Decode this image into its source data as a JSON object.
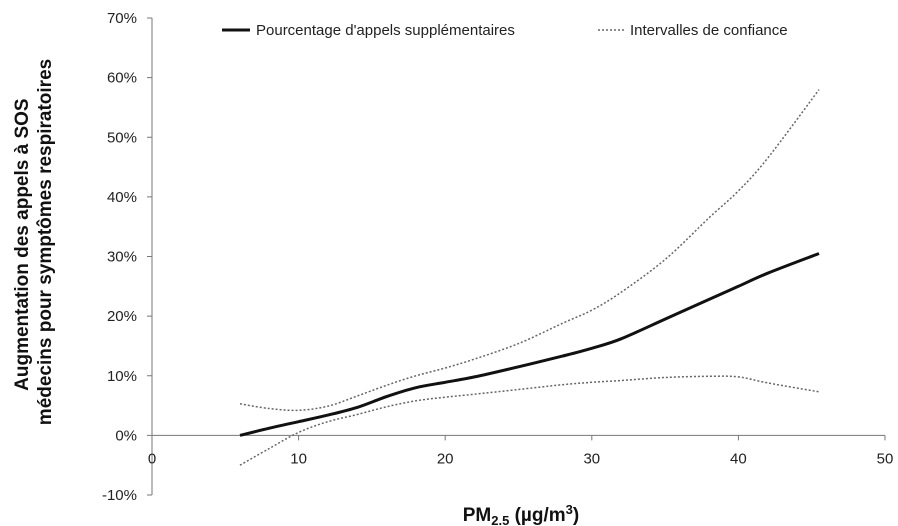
{
  "chart_data": {
    "type": "line",
    "title": "",
    "xlabel": "PM",
    "xlabel_sub": "2.5",
    "xlabel_unit_open": " (µg/m",
    "xlabel_unit_sup": "3",
    "xlabel_unit_close": ")",
    "ylabel_line1": "Augmentation des appels à SOS",
    "ylabel_line2": "médecins pour symptômes respiratoires",
    "xlim": [
      0,
      50
    ],
    "ylim": [
      -10,
      70
    ],
    "x_ticks": [
      0,
      10,
      20,
      30,
      40,
      50
    ],
    "y_ticks": [
      -10,
      0,
      10,
      20,
      30,
      40,
      50,
      60,
      70
    ],
    "x_tick_labels": [
      "0",
      "10",
      "20",
      "30",
      "40",
      "50"
    ],
    "y_tick_labels": [
      "-10%",
      "0%",
      "10%",
      "20%",
      "30%",
      "40%",
      "50%",
      "60%",
      "70%"
    ],
    "grid": false,
    "legend_position": "top",
    "series": [
      {
        "name": "Pourcentage d'appels supplémentaires",
        "style": "solid",
        "color": "#111111",
        "x": [
          6,
          8,
          10,
          12,
          14,
          16,
          18,
          20,
          22,
          25,
          28,
          30,
          32,
          35,
          38,
          40,
          42,
          45.5
        ],
        "y": [
          0,
          1.2,
          2.3,
          3.4,
          4.7,
          6.5,
          8.0,
          8.9,
          9.8,
          11.5,
          13.3,
          14.6,
          16.2,
          19.5,
          22.8,
          25.0,
          27.2,
          30.5
        ]
      },
      {
        "name": "Intervalles de confiance",
        "style": "dotted",
        "color": "#666666",
        "x": [
          6,
          8,
          10,
          12,
          14,
          16,
          18,
          20,
          22,
          25,
          28,
          30,
          32,
          35,
          38,
          40,
          42,
          45.5
        ],
        "y": [
          5.3,
          4.5,
          4.2,
          4.9,
          6.6,
          8.4,
          10.0,
          11.3,
          12.8,
          15.4,
          18.8,
          21.0,
          24.0,
          29.5,
          36.5,
          41.0,
          46.5,
          58.0
        ]
      },
      {
        "name": "",
        "style": "dotted",
        "color": "#666666",
        "x": [
          6,
          8,
          10,
          12,
          14,
          16,
          18,
          20,
          22,
          25,
          28,
          30,
          32,
          35,
          38,
          40,
          42,
          45.5
        ],
        "y": [
          -5.0,
          -2.2,
          0.5,
          2.3,
          3.5,
          4.8,
          5.8,
          6.4,
          6.9,
          7.7,
          8.5,
          8.9,
          9.2,
          9.7,
          9.9,
          9.8,
          8.8,
          7.3
        ]
      }
    ]
  }
}
